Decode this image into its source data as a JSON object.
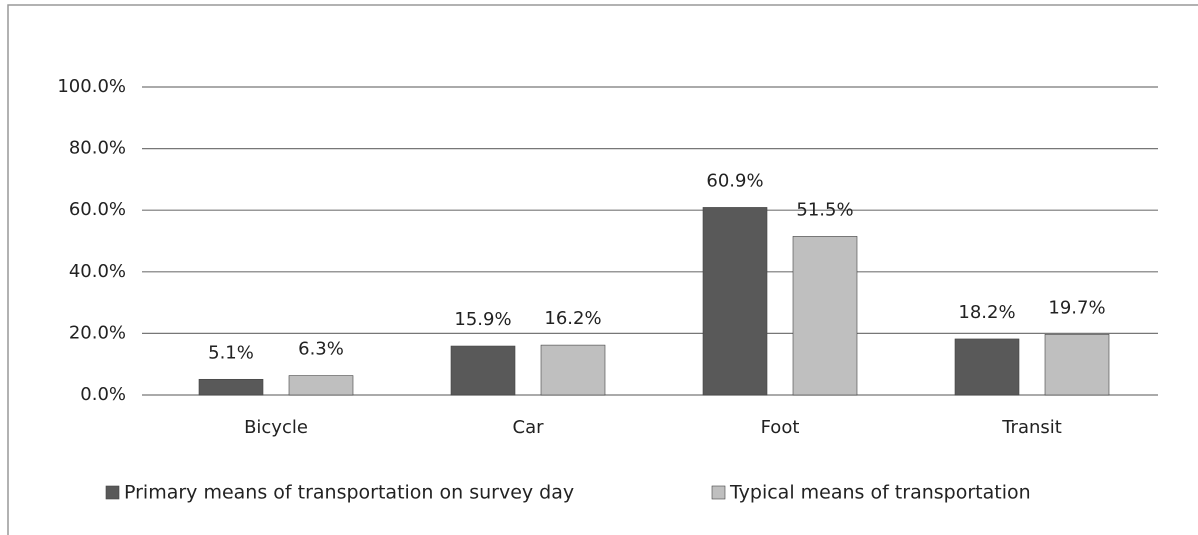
{
  "chart_data": {
    "type": "bar",
    "categories": [
      "Bicycle",
      "Car",
      "Foot",
      "Transit"
    ],
    "series": [
      {
        "name": "Primary means of transportation on survey day",
        "color": "#595959",
        "values": [
          5.1,
          15.9,
          60.9,
          18.2
        ],
        "value_labels": [
          "5.1%",
          "15.9%",
          "60.9%",
          "18.2%"
        ]
      },
      {
        "name": "Typical means of transportation",
        "color": "#bfbfbf",
        "values": [
          6.3,
          16.2,
          51.5,
          19.7
        ],
        "value_labels": [
          "6.3%",
          "16.2%",
          "51.5%",
          "19.7%"
        ]
      }
    ],
    "ylim": [
      0,
      100
    ],
    "yticks": [
      {
        "value": 0,
        "label": "0.0%"
      },
      {
        "value": 20,
        "label": "20.0%"
      },
      {
        "value": 40,
        "label": "40.0%"
      },
      {
        "value": 60,
        "label": "60.0%"
      },
      {
        "value": 80,
        "label": "80.0%"
      },
      {
        "value": 100,
        "label": "100.0%"
      }
    ],
    "grid": true,
    "legend": "bottom"
  }
}
